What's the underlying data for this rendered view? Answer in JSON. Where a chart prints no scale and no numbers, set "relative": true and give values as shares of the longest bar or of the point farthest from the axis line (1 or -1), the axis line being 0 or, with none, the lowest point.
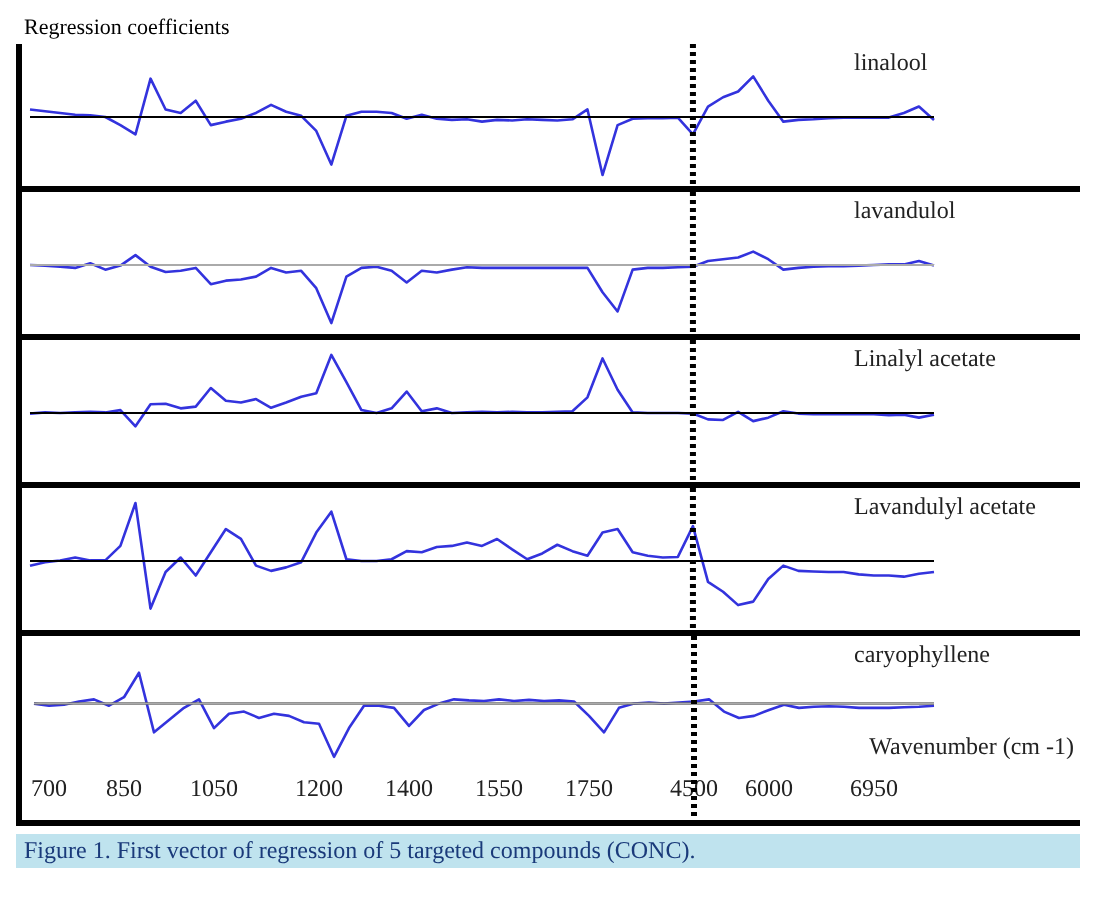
{
  "chart_data": [
    {
      "type": "line",
      "ylabel": "Regression coefficients",
      "relative": true,
      "tick_labels": false,
      "categories": [
        null,
        "700",
        null,
        null,
        null,
        null,
        "850",
        null,
        null,
        null,
        null,
        null,
        "1050",
        null,
        null,
        null,
        null,
        null,
        null,
        "1200",
        null,
        null,
        null,
        null,
        null,
        "1400",
        null,
        null,
        null,
        null,
        null,
        "1550",
        null,
        null,
        null,
        null,
        null,
        "1750",
        null,
        null,
        null,
        null,
        null,
        null,
        "4500",
        null,
        null,
        null,
        null,
        "6000",
        null,
        null,
        null,
        null,
        null,
        null,
        "6950",
        null,
        null,
        null,
        null
      ],
      "series": [
        {
          "name": "linalool",
          "color": "#3333dd",
          "values": [
            0.13,
            0.1,
            0.07,
            0.04,
            0.03,
            0,
            -0.14,
            -0.3,
            0.66,
            0.13,
            0.07,
            0.28,
            -0.14,
            -0.08,
            -0.03,
            0.07,
            0.21,
            0.09,
            0.02,
            -0.24,
            -0.82,
            0.02,
            0.09,
            0.09,
            0.07,
            -0.03,
            0.04,
            -0.03,
            -0.05,
            -0.04,
            -0.08,
            -0.05,
            -0.06,
            -0.04,
            -0.05,
            -0.06,
            -0.04,
            0.13,
            -1,
            -0.14,
            -0.03,
            -0.02,
            -0.02,
            -0.01,
            -0.3,
            0.18,
            0.34,
            0.44,
            0.7,
            0.28,
            -0.08,
            -0.05,
            -0.04,
            -0.02,
            -0.01,
            -0.01,
            -0.01,
            -0.01,
            0.07,
            0.18,
            -0.05
          ]
        }
      ],
      "ref_lines": [
        {
          "axis": "y",
          "value": 0,
          "color": "#000000"
        },
        {
          "axis": "x",
          "value": "4500",
          "color": "#000000",
          "line_style": "dotted"
        }
      ]
    },
    {
      "type": "line",
      "relative": true,
      "tick_labels": false,
      "categories": [
        null,
        "700",
        null,
        null,
        null,
        null,
        "850",
        null,
        null,
        null,
        null,
        null,
        "1050",
        null,
        null,
        null,
        null,
        null,
        null,
        "1200",
        null,
        null,
        null,
        null,
        null,
        "1400",
        null,
        null,
        null,
        null,
        null,
        "1550",
        null,
        null,
        null,
        null,
        null,
        "1750",
        null,
        null,
        null,
        null,
        null,
        null,
        "4500",
        null,
        null,
        null,
        null,
        "6000",
        null,
        null,
        null,
        null,
        null,
        null,
        "6950",
        null,
        null,
        null,
        null
      ],
      "series": [
        {
          "name": "lavandulol",
          "color": "#3333dd",
          "values": [
            0,
            -0.01,
            -0.03,
            -0.05,
            0.03,
            -0.08,
            -0.01,
            0.17,
            -0.03,
            -0.12,
            -0.1,
            -0.05,
            -0.33,
            -0.27,
            -0.25,
            -0.2,
            -0.05,
            -0.13,
            -0.1,
            -0.4,
            -1,
            -0.2,
            -0.05,
            -0.03,
            -0.1,
            -0.3,
            -0.1,
            -0.13,
            -0.08,
            -0.04,
            -0.05,
            -0.05,
            -0.05,
            -0.05,
            -0.05,
            -0.05,
            -0.05,
            -0.05,
            -0.47,
            -0.8,
            -0.08,
            -0.05,
            -0.05,
            -0.04,
            -0.03,
            0.07,
            0.1,
            0.13,
            0.23,
            0.1,
            -0.08,
            -0.05,
            -0.03,
            -0.02,
            -0.02,
            -0.01,
            0,
            0.01,
            0.01,
            0.07,
            -0.01
          ]
        }
      ],
      "ref_lines": [
        {
          "axis": "y",
          "value": 0,
          "color": "#aaaaaa"
        },
        {
          "axis": "x",
          "value": "4500",
          "color": "#000000",
          "line_style": "dotted"
        }
      ]
    },
    {
      "type": "line",
      "relative": true,
      "tick_labels": false,
      "categories": [
        null,
        "700",
        null,
        null,
        null,
        null,
        "850",
        null,
        null,
        null,
        null,
        null,
        "1050",
        null,
        null,
        null,
        null,
        null,
        null,
        "1200",
        null,
        null,
        null,
        null,
        null,
        "1400",
        null,
        null,
        null,
        null,
        null,
        "1550",
        null,
        null,
        null,
        null,
        null,
        "1750",
        null,
        null,
        null,
        null,
        null,
        null,
        "4500",
        null,
        null,
        null,
        null,
        "6000",
        null,
        null,
        null,
        null,
        null,
        null,
        "6950",
        null,
        null,
        null,
        null
      ],
      "series": [
        {
          "name": "Linalyl acetate",
          "color": "#3333dd",
          "values": [
            -0.01,
            0.01,
            0,
            0.01,
            0.02,
            0.01,
            0.05,
            -0.23,
            0.15,
            0.16,
            0.08,
            0.11,
            0.43,
            0.21,
            0.18,
            0.24,
            0.09,
            0.18,
            0.28,
            0.34,
            1,
            0.53,
            0.05,
            0,
            0.08,
            0.37,
            0.03,
            0.08,
            0,
            0.01,
            0.02,
            0.01,
            0.02,
            0.01,
            0.01,
            0.02,
            0.03,
            0.27,
            0.94,
            0.4,
            0.01,
            0,
            0,
            0,
            -0.01,
            -0.11,
            -0.12,
            0.02,
            -0.14,
            -0.08,
            0.03,
            -0.01,
            -0.02,
            -0.02,
            -0.02,
            -0.02,
            -0.02,
            -0.04,
            -0.03,
            -0.08,
            -0.03
          ]
        }
      ],
      "ref_lines": [
        {
          "axis": "y",
          "value": 0,
          "color": "#000000"
        },
        {
          "axis": "x",
          "value": "4500",
          "color": "#000000",
          "line_style": "dotted"
        }
      ]
    },
    {
      "type": "line",
      "relative": true,
      "tick_labels": false,
      "categories": [
        null,
        "700",
        null,
        null,
        null,
        null,
        "850",
        null,
        null,
        null,
        null,
        null,
        "1050",
        null,
        null,
        null,
        null,
        null,
        null,
        "1200",
        null,
        null,
        null,
        null,
        null,
        "1400",
        null,
        null,
        null,
        null,
        null,
        "1550",
        null,
        null,
        null,
        null,
        null,
        "1750",
        null,
        null,
        null,
        null,
        null,
        null,
        "4500",
        null,
        null,
        null,
        null,
        "6000",
        null,
        null,
        null,
        null,
        null,
        null,
        "6950",
        null,
        null,
        null,
        null
      ],
      "series": [
        {
          "name": "Lavandulyl acetate",
          "color": "#3333dd",
          "values": [
            -0.08,
            -0.02,
            0.01,
            0.06,
            0.01,
            0.01,
            0.26,
            1,
            -0.82,
            -0.19,
            0.06,
            -0.25,
            0.15,
            0.55,
            0.38,
            -0.08,
            -0.17,
            -0.11,
            -0.02,
            0.49,
            0.85,
            0.03,
            0,
            0,
            0.03,
            0.17,
            0.15,
            0.24,
            0.26,
            0.32,
            0.26,
            0.38,
            0.2,
            0.03,
            0.13,
            0.28,
            0.17,
            0.09,
            0.49,
            0.55,
            0.15,
            0.09,
            0.06,
            0.07,
            0.6,
            -0.36,
            -0.53,
            -0.76,
            -0.7,
            -0.31,
            -0.08,
            -0.17,
            -0.18,
            -0.19,
            -0.19,
            -0.23,
            -0.25,
            -0.25,
            -0.27,
            -0.22,
            -0.19
          ]
        }
      ],
      "ref_lines": [
        {
          "axis": "y",
          "value": 0,
          "color": "#000000"
        },
        {
          "axis": "x",
          "value": "4500",
          "color": "#000000",
          "line_style": "dotted"
        }
      ]
    },
    {
      "type": "line",
      "relative": true,
      "tick_labels": "x",
      "xlabel": "Wavenumber (cm -1)",
      "annotations": [
        "Figure 1. First vector of regression of 5 targeted compounds (CONC)."
      ],
      "categories": [
        null,
        "700",
        null,
        null,
        null,
        null,
        "850",
        null,
        null,
        null,
        null,
        null,
        "1050",
        null,
        null,
        null,
        null,
        null,
        null,
        "1200",
        null,
        null,
        null,
        null,
        null,
        "1400",
        null,
        null,
        null,
        null,
        null,
        "1550",
        null,
        null,
        null,
        null,
        null,
        "1750",
        null,
        null,
        null,
        null,
        null,
        null,
        "4500",
        null,
        null,
        null,
        null,
        "6000",
        null,
        null,
        null,
        null,
        null,
        null,
        "6950",
        null,
        null,
        null,
        null
      ],
      "series": [
        {
          "name": "caryophyllene",
          "color": "#3333dd",
          "values": [
            0,
            -0.04,
            -0.02,
            0.04,
            0.08,
            -0.04,
            0.12,
            0.58,
            -0.54,
            -0.31,
            -0.08,
            0.08,
            -0.46,
            -0.19,
            -0.15,
            -0.27,
            -0.19,
            -0.23,
            -0.35,
            -0.38,
            -1,
            -0.46,
            -0.04,
            -0.04,
            -0.08,
            -0.42,
            -0.12,
            0,
            0.08,
            0.06,
            0.05,
            0.08,
            0.05,
            0.07,
            0.05,
            0.06,
            0.04,
            -0.23,
            -0.54,
            -0.08,
            0,
            0.02,
            0,
            0.02,
            0.04,
            0.08,
            -0.15,
            -0.27,
            -0.23,
            -0.12,
            -0.02,
            -0.08,
            -0.06,
            -0.05,
            -0.06,
            -0.08,
            -0.08,
            -0.08,
            -0.07,
            -0.06,
            -0.04
          ]
        }
      ],
      "ref_lines": [
        {
          "axis": "y",
          "value": 0,
          "color": "#aaaaaa"
        },
        {
          "axis": "x",
          "value": "4500",
          "color": "#000000",
          "line_style": "dotted"
        }
      ]
    }
  ]
}
